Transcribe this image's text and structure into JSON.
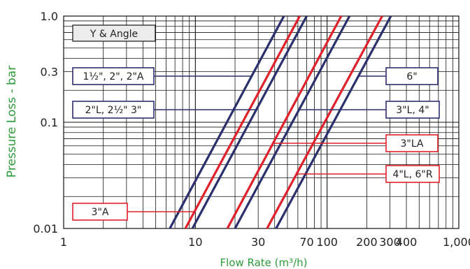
{
  "chart_data": {
    "type": "line",
    "title": "",
    "xlabel": "Flow Rate (m³/h)",
    "ylabel": "Pressure Loss - bar",
    "x_scale": "log",
    "y_scale": "log",
    "xlim": [
      1,
      1000
    ],
    "ylim": [
      0.01,
      1.0
    ],
    "x_ticks": [
      {
        "value": 1,
        "label": "1"
      },
      {
        "value": 10,
        "label": "10"
      },
      {
        "value": 30,
        "label": "30"
      },
      {
        "value": 70,
        "label": "70"
      },
      {
        "value": 100,
        "label": "100"
      },
      {
        "value": 200,
        "label": "200"
      },
      {
        "value": 300,
        "label": "300"
      },
      {
        "value": 400,
        "label": "400"
      },
      {
        "value": 1000,
        "label": "1,000"
      }
    ],
    "y_ticks": [
      {
        "value": 0.01,
        "label": "0.01"
      },
      {
        "value": 0.1,
        "label": "0.1"
      },
      {
        "value": 0.3,
        "label": "0.3"
      },
      {
        "value": 1.0,
        "label": "1.0"
      }
    ],
    "grid": true,
    "legend_box": "Y & Angle",
    "series": [
      {
        "name": "1½\", 2\", 2\"A",
        "color": "#2b2f6b",
        "points": [
          [
            6.4,
            0.01
          ],
          [
            47,
            1.0
          ]
        ]
      },
      {
        "name": "2\"L, 2½\" 3\"",
        "color": "#2b2f6b",
        "points": [
          [
            9.5,
            0.01
          ],
          [
            70,
            1.0
          ]
        ]
      },
      {
        "name": "3\"A",
        "color": "#e0202a",
        "points": [
          [
            8.4,
            0.01
          ],
          [
            62,
            1.0
          ]
        ]
      },
      {
        "name": "3\"LA",
        "color": "#e0202a",
        "points": [
          [
            17.5,
            0.01
          ],
          [
            128,
            1.0
          ]
        ]
      },
      {
        "name": "3\"L, 4\"",
        "color": "#2b2f6b",
        "points": [
          [
            20,
            0.01
          ],
          [
            148,
            1.0
          ]
        ]
      },
      {
        "name": "4\"L, 6\"R",
        "color": "#e0202a",
        "points": [
          [
            35,
            0.01
          ],
          [
            262,
            1.0
          ]
        ]
      },
      {
        "name": "6\"",
        "color": "#2b2f6b",
        "points": [
          [
            41,
            0.01
          ],
          [
            305,
            1.0
          ]
        ]
      }
    ],
    "labels": [
      {
        "text": "1½\", 2\", 2\"A",
        "border": "#2b2f6b",
        "side": "left"
      },
      {
        "text": "2\"L, 2½\" 3\"",
        "border": "#2b2f6b",
        "side": "left"
      },
      {
        "text": "3\"A",
        "border": "#e0202a",
        "side": "left"
      },
      {
        "text": "6\"",
        "border": "#2b2f6b",
        "side": "right"
      },
      {
        "text": "3\"L, 4\"",
        "border": "#2b2f6b",
        "side": "right"
      },
      {
        "text": "3\"LA",
        "border": "#e0202a",
        "side": "right"
      },
      {
        "text": "4\"L, 6\"R",
        "border": "#e0202a",
        "side": "right"
      }
    ]
  }
}
